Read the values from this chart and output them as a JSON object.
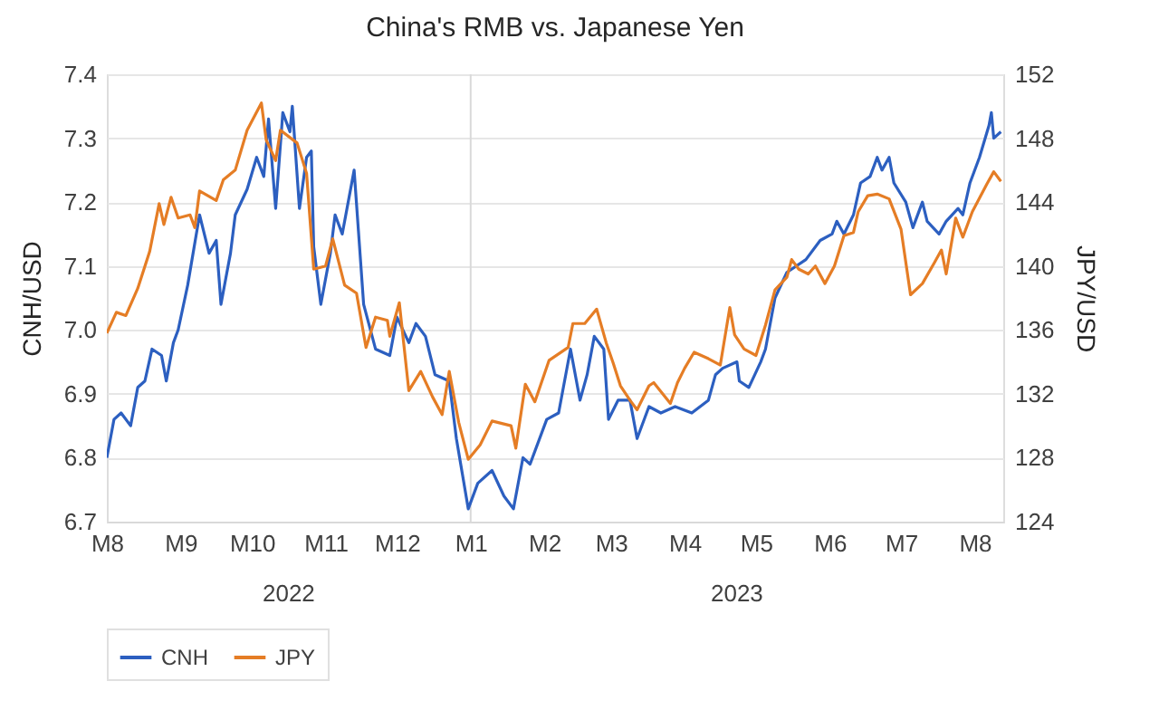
{
  "chart_data": {
    "type": "line",
    "title": "China's RMB vs. Japanese Yen",
    "ylabel": "CNH/USD",
    "y2label": "JPY/USD",
    "xlim": [
      "2022-08-01",
      "2023-08-13"
    ],
    "xticks": [
      {
        "value": "2022-08-01",
        "label": "M8"
      },
      {
        "value": "2022-09-01",
        "label": "M9"
      },
      {
        "value": "2022-10-01",
        "label": "M10"
      },
      {
        "value": "2022-11-01",
        "label": "M11"
      },
      {
        "value": "2022-12-01",
        "label": "M12"
      },
      {
        "value": "2023-01-01",
        "label": "M1"
      },
      {
        "value": "2023-02-01",
        "label": "M2"
      },
      {
        "value": "2023-03-01",
        "label": "M3"
      },
      {
        "value": "2023-04-01",
        "label": "M4"
      },
      {
        "value": "2023-05-01",
        "label": "M5"
      },
      {
        "value": "2023-06-01",
        "label": "M6"
      },
      {
        "value": "2023-07-01",
        "label": "M7"
      },
      {
        "value": "2023-08-01",
        "label": "M8"
      }
    ],
    "ylim": [
      6.7,
      7.4
    ],
    "yticks": [
      6.7,
      6.8,
      6.9,
      {
        "value": 7.0,
        "label": "7.0"
      },
      7.1,
      7.2,
      7.3,
      7.4
    ],
    "y2lim": [
      124,
      152
    ],
    "y2ticks": [
      124,
      128,
      132,
      136,
      140,
      144,
      148,
      152
    ],
    "grid": "y",
    "legend": "bottom",
    "line_style": "solid",
    "marker": "none",
    "annotations": [
      "2022",
      "2023"
    ],
    "ref_lines": [
      {
        "axis": "x",
        "value": "2023-01-01",
        "color": "#d9d9d9"
      }
    ],
    "series": [
      {
        "name": "CNH",
        "color": "#2c5fc0",
        "x": [
          "2022-08-01",
          "2022-08-04",
          "2022-08-07",
          "2022-08-11",
          "2022-08-14",
          "2022-08-17",
          "2022-08-20",
          "2022-08-24",
          "2022-08-26",
          "2022-08-29",
          "2022-08-31",
          "2022-09-04",
          "2022-09-09",
          "2022-09-13",
          "2022-09-16",
          "2022-09-18",
          "2022-09-22",
          "2022-09-24",
          "2022-09-29",
          "2022-10-03",
          "2022-10-06",
          "2022-10-08",
          "2022-10-11",
          "2022-10-14",
          "2022-10-17",
          "2022-10-18",
          "2022-10-21",
          "2022-10-24",
          "2022-10-26",
          "2022-10-27",
          "2022-10-30",
          "2022-11-03",
          "2022-11-05",
          "2022-11-08",
          "2022-11-13",
          "2022-11-17",
          "2022-11-22",
          "2022-11-28",
          "2022-12-01",
          "2022-12-06",
          "2022-12-09",
          "2022-12-13",
          "2022-12-17",
          "2022-12-23",
          "2022-12-26",
          "2022-12-31",
          "2023-01-04",
          "2023-01-10",
          "2023-01-15",
          "2023-01-19",
          "2023-01-23",
          "2023-01-26",
          "2023-02-02",
          "2023-02-07",
          "2023-02-12",
          "2023-02-16",
          "2023-02-19",
          "2023-02-22",
          "2023-02-26",
          "2023-02-28",
          "2023-03-04",
          "2023-03-09",
          "2023-03-12",
          "2023-03-17",
          "2023-03-22",
          "2023-03-28",
          "2023-04-04",
          "2023-04-11",
          "2023-04-14",
          "2023-04-17",
          "2023-04-23",
          "2023-04-24",
          "2023-04-28",
          "2023-05-03",
          "2023-05-05",
          "2023-05-09",
          "2023-05-14",
          "2023-05-22",
          "2023-05-28",
          "2023-06-02",
          "2023-06-04",
          "2023-06-07",
          "2023-06-11",
          "2023-06-14",
          "2023-06-18",
          "2023-06-21",
          "2023-06-23",
          "2023-06-26",
          "2023-06-28",
          "2023-07-03",
          "2023-07-06",
          "2023-07-10",
          "2023-07-12",
          "2023-07-17",
          "2023-07-20",
          "2023-07-25",
          "2023-07-27",
          "2023-07-30",
          "2023-08-03",
          "2023-08-07",
          "2023-08-08",
          "2023-08-09",
          "2023-08-12"
        ],
        "values": [
          6.8,
          6.86,
          6.87,
          6.85,
          6.91,
          6.92,
          6.97,
          6.96,
          6.92,
          6.98,
          7.0,
          7.07,
          7.18,
          7.12,
          7.14,
          7.04,
          7.12,
          7.18,
          7.22,
          7.27,
          7.24,
          7.33,
          7.19,
          7.34,
          7.31,
          7.35,
          7.19,
          7.27,
          7.28,
          7.13,
          7.04,
          7.12,
          7.18,
          7.15,
          7.25,
          7.04,
          6.97,
          6.96,
          7.02,
          6.98,
          7.01,
          6.99,
          6.93,
          6.92,
          6.83,
          6.72,
          6.76,
          6.78,
          6.74,
          6.72,
          6.8,
          6.79,
          6.86,
          6.87,
          6.97,
          6.89,
          6.93,
          6.99,
          6.97,
          6.86,
          6.89,
          6.89,
          6.83,
          6.88,
          6.87,
          6.88,
          6.87,
          6.89,
          6.93,
          6.94,
          6.95,
          6.92,
          6.91,
          6.95,
          6.97,
          7.05,
          7.09,
          7.11,
          7.14,
          7.15,
          7.17,
          7.15,
          7.18,
          7.23,
          7.24,
          7.27,
          7.25,
          7.27,
          7.23,
          7.2,
          7.16,
          7.2,
          7.17,
          7.15,
          7.17,
          7.19,
          7.18,
          7.23,
          7.27,
          7.32,
          7.34,
          7.3,
          7.31
        ]
      },
      {
        "name": "JPY",
        "color": "#e57d25",
        "axis": "y2",
        "x": [
          "2022-08-01",
          "2022-08-05",
          "2022-08-09",
          "2022-08-14",
          "2022-08-19",
          "2022-08-23",
          "2022-08-25",
          "2022-08-28",
          "2022-08-31",
          "2022-09-05",
          "2022-09-07",
          "2022-09-09",
          "2022-09-16",
          "2022-09-19",
          "2022-09-24",
          "2022-09-29",
          "2022-10-05",
          "2022-10-07",
          "2022-10-11",
          "2022-10-13",
          "2022-10-20",
          "2022-10-24",
          "2022-10-27",
          "2022-11-01",
          "2022-11-04",
          "2022-11-09",
          "2022-11-14",
          "2022-11-18",
          "2022-11-22",
          "2022-11-27",
          "2022-11-28",
          "2022-12-02",
          "2022-12-06",
          "2022-12-11",
          "2022-12-16",
          "2022-12-20",
          "2022-12-23",
          "2022-12-27",
          "2022-12-31",
          "2023-01-05",
          "2023-01-10",
          "2023-01-18",
          "2023-01-20",
          "2023-01-24",
          "2023-01-28",
          "2023-02-03",
          "2023-02-11",
          "2023-02-13",
          "2023-02-18",
          "2023-02-23",
          "2023-02-27",
          "2023-03-02",
          "2023-03-05",
          "2023-03-09",
          "2023-03-12",
          "2023-03-17",
          "2023-03-19",
          "2023-03-26",
          "2023-03-29",
          "2023-04-01",
          "2023-04-05",
          "2023-04-11",
          "2023-04-16",
          "2023-04-20",
          "2023-04-22",
          "2023-04-26",
          "2023-05-01",
          "2023-05-05",
          "2023-05-09",
          "2023-05-14",
          "2023-05-16",
          "2023-05-19",
          "2023-05-23",
          "2023-05-26",
          "2023-05-30",
          "2023-06-03",
          "2023-06-07",
          "2023-06-11",
          "2023-06-13",
          "2023-06-17",
          "2023-06-21",
          "2023-06-26",
          "2023-07-01",
          "2023-07-05",
          "2023-07-10",
          "2023-07-15",
          "2023-07-18",
          "2023-07-20",
          "2023-07-24",
          "2023-07-27",
          "2023-07-31",
          "2023-08-06",
          "2023-08-09",
          "2023-08-12"
        ],
        "values": [
          135.8,
          137.1,
          136.9,
          138.6,
          140.9,
          143.9,
          142.6,
          144.3,
          143.0,
          143.2,
          142.4,
          144.7,
          144.1,
          145.4,
          146.0,
          148.5,
          150.2,
          147.9,
          146.6,
          148.5,
          147.7,
          145.8,
          139.8,
          140.0,
          141.7,
          138.8,
          138.3,
          134.9,
          136.8,
          136.6,
          135.6,
          137.7,
          132.2,
          133.4,
          131.8,
          130.7,
          133.4,
          130.2,
          127.9,
          128.8,
          130.3,
          130.0,
          128.6,
          132.6,
          131.5,
          134.1,
          134.9,
          136.4,
          136.4,
          137.3,
          135.2,
          133.9,
          132.5,
          131.6,
          131.0,
          132.5,
          132.7,
          131.4,
          132.7,
          133.6,
          134.6,
          134.2,
          133.8,
          137.4,
          135.7,
          134.8,
          134.4,
          136.3,
          138.5,
          139.3,
          140.4,
          139.8,
          139.5,
          140.0,
          138.9,
          140.0,
          141.9,
          142.1,
          143.4,
          144.4,
          144.5,
          144.2,
          142.3,
          138.2,
          138.9,
          140.2,
          141.0,
          139.5,
          143.0,
          141.8,
          143.4,
          145.1,
          145.9,
          145.3
        ]
      }
    ]
  }
}
